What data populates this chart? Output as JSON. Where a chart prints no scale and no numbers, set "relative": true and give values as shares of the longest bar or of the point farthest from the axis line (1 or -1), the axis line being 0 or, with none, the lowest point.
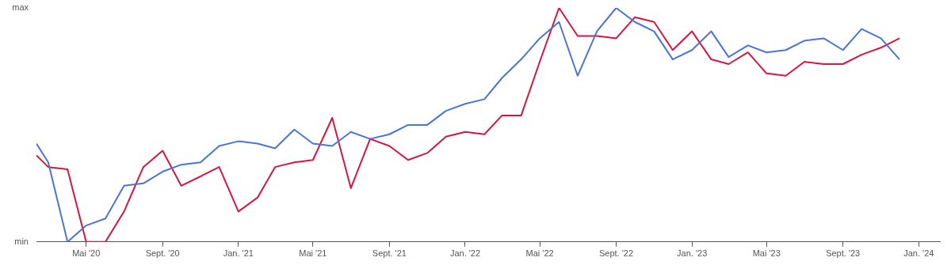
{
  "chart_data": {
    "type": "line",
    "x": [
      "2020-02-11",
      "2020-03",
      "2020-04",
      "2020-05",
      "2020-06",
      "2020-07",
      "2020-08",
      "2020-09",
      "2020-10",
      "2020-11",
      "2020-12",
      "2021-01",
      "2021-02",
      "2021-03",
      "2021-04",
      "2021-05",
      "2021-06",
      "2021-07",
      "2021-08",
      "2021-09",
      "2021-10",
      "2021-11",
      "2021-12",
      "2022-01",
      "2022-02",
      "2022-03",
      "2022-04",
      "2022-05",
      "2022-06",
      "2022-07",
      "2022-08",
      "2022-09",
      "2022-10",
      "2022-11",
      "2022-12",
      "2023-01",
      "2023-02",
      "2023-03",
      "2023-04",
      "2023-05",
      "2023-06",
      "2023-07",
      "2023-08",
      "2023-09",
      "2023-10",
      "2023-11",
      "2023-12"
    ],
    "series": [
      {
        "color": "#4a74d9",
        "values": [
          0.42,
          0.34,
          0,
          0.07,
          0.1,
          0.24,
          0.25,
          0.3,
          0.33,
          0.34,
          0.41,
          0.43,
          0.42,
          0.4,
          0.48,
          0.42,
          0.41,
          0.47,
          0.44,
          0.46,
          0.5,
          0.5,
          0.56,
          0.59,
          0.61,
          0.7,
          0.78,
          0.87,
          0.94,
          0.71,
          0.9,
          1,
          0.94,
          0.9,
          0.78,
          0.82,
          0.9,
          0.79,
          0.84,
          0.81,
          0.82,
          0.86,
          0.87,
          0.82,
          0.91,
          0.87,
          0.78
        ]
      },
      {
        "color": "#d6163f",
        "values": [
          0.37,
          0.32,
          0.31,
          0,
          0,
          0.13,
          0.32,
          0.39,
          0.24,
          0.28,
          0.32,
          0.13,
          0.19,
          0.32,
          0.34,
          0.35,
          0.53,
          0.23,
          0.44,
          0.41,
          0.35,
          0.38,
          0.45,
          0.47,
          0.46,
          0.54,
          0.54,
          0.77,
          1,
          0.88,
          0.88,
          0.87,
          0.96,
          0.94,
          0.82,
          0.9,
          0.78,
          0.76,
          0.81,
          0.72,
          0.71,
          0.77,
          0.76,
          0.76,
          0.8,
          0.83,
          0.87
        ]
      }
    ],
    "xlim": [
      "2020-02-11",
      "2024-02-04"
    ],
    "xticks": [
      {
        "value": "2020-05",
        "label": "Mai '20"
      },
      {
        "value": "2020-09",
        "label": "Sept. '20"
      },
      {
        "value": "2021-01",
        "label": "Jan. '21"
      },
      {
        "value": "2021-05",
        "label": "Mai '21"
      },
      {
        "value": "2021-09",
        "label": "Sept. '21"
      },
      {
        "value": "2022-01",
        "label": "Jan. '22"
      },
      {
        "value": "2022-05",
        "label": "Mai '22"
      },
      {
        "value": "2022-09",
        "label": "Sept. '22"
      },
      {
        "value": "2023-01",
        "label": "Jan. '23"
      },
      {
        "value": "2023-05",
        "label": "Mai '23"
      },
      {
        "value": "2023-09",
        "label": "Sept. '23"
      },
      {
        "value": "2024-01",
        "label": "Jan. '24"
      }
    ],
    "relative": true,
    "annotations": [
      "max",
      "min"
    ],
    "legend": false,
    "marker": "none",
    "line_style": "solid"
  }
}
